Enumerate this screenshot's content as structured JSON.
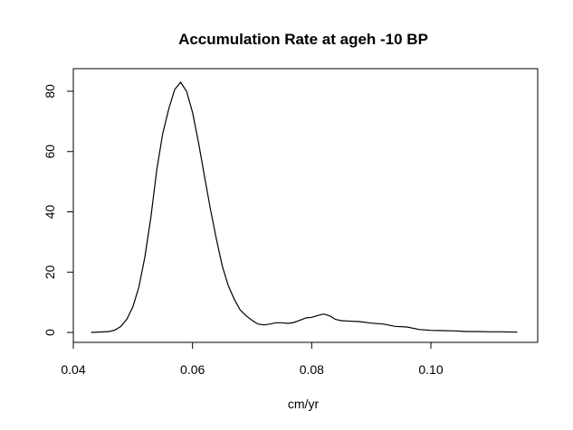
{
  "chart_data": {
    "type": "line",
    "title": "Accumulation Rate at ageh -10 BP",
    "xlabel": "cm/yr",
    "ylabel": "",
    "xlim": [
      0.04,
      0.115
    ],
    "ylim": [
      0,
      85
    ],
    "x_ticks": [
      0.04,
      0.06,
      0.08,
      0.1
    ],
    "x_tick_labels": [
      "0.04",
      "0.06",
      "0.08",
      "0.10"
    ],
    "y_ticks": [
      0,
      20,
      40,
      60,
      80
    ],
    "y_tick_labels": [
      "0",
      "20",
      "40",
      "60",
      "80"
    ],
    "grid": false,
    "series": [
      {
        "x": [
          0.043,
          0.046,
          0.047,
          0.048,
          0.049,
          0.05,
          0.051,
          0.052,
          0.053,
          0.054,
          0.055,
          0.056,
          0.057,
          0.058,
          0.059,
          0.06,
          0.061,
          0.062,
          0.063,
          0.064,
          0.065,
          0.066,
          0.067,
          0.068,
          0.069,
          0.07,
          0.071,
          0.072,
          0.073,
          0.074,
          0.075,
          0.076,
          0.077,
          0.078,
          0.079,
          0.08,
          0.081,
          0.082,
          0.083,
          0.084,
          0.085,
          0.086,
          0.088,
          0.09,
          0.092,
          0.094,
          0.096,
          0.098,
          0.1,
          0.102,
          0.104,
          0.106,
          0.108,
          0.11,
          0.112,
          0.1145
        ],
        "y": [
          0.0,
          0.3,
          0.8,
          2.0,
          4.5,
          8.5,
          15.0,
          25.0,
          38.0,
          54.0,
          66.0,
          74.0,
          80.5,
          83.0,
          80.0,
          73.0,
          63.0,
          52.0,
          41.0,
          31.0,
          22.0,
          15.5,
          11.0,
          7.5,
          5.5,
          4.0,
          2.8,
          2.5,
          2.8,
          3.2,
          3.2,
          3.0,
          3.3,
          4.0,
          4.8,
          5.0,
          5.6,
          6.1,
          5.5,
          4.3,
          3.9,
          3.8,
          3.6,
          3.1,
          2.8,
          2.0,
          1.8,
          1.0,
          0.7,
          0.6,
          0.5,
          0.3,
          0.3,
          0.2,
          0.2,
          0.1
        ]
      }
    ]
  }
}
